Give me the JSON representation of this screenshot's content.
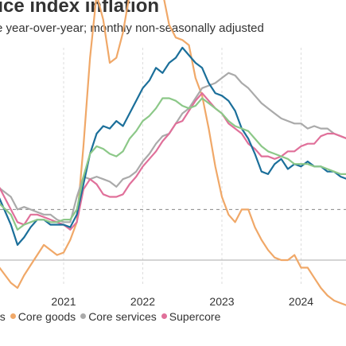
{
  "chart_data": {
    "type": "line",
    "title": "rice index inflation",
    "subtitle": "e year-over-year; monthly non-seasonally adjusted",
    "x_ticks": [
      "2021",
      "2022",
      "2023",
      "2024"
    ],
    "grid": "vertical dashed at years",
    "legend_position": "bottom",
    "series": [
      {
        "name": "Core goods",
        "color": "#f0a868",
        "values": [
          [
            "2020-01",
            0.0
          ],
          [
            "2020-03",
            -0.2
          ],
          [
            "2020-05",
            -0.9
          ],
          [
            "2020-06",
            -1.1
          ],
          [
            "2020-07",
            -0.6
          ],
          [
            "2020-08",
            -0.2
          ],
          [
            "2020-09",
            0.2
          ],
          [
            "2020-10",
            0.6
          ],
          [
            "2020-11",
            0.4
          ],
          [
            "2020-12",
            0.2
          ],
          [
            "2021-01",
            0.3
          ],
          [
            "2021-02",
            0.8
          ],
          [
            "2021-03",
            1.5
          ],
          [
            "2021-04",
            4.5
          ],
          [
            "2021-05",
            8.0
          ],
          [
            "2021-06",
            10.5
          ],
          [
            "2021-07",
            9.5
          ],
          [
            "2021-08",
            7.8
          ],
          [
            "2021-09",
            8.0
          ],
          [
            "2021-10",
            9.0
          ],
          [
            "2021-11",
            10.5
          ],
          [
            "2021-12",
            11.5
          ],
          [
            "2022-01",
            12.5
          ],
          [
            "2022-02",
            13.0
          ],
          [
            "2022-03",
            12.3
          ],
          [
            "2022-04",
            10.6
          ],
          [
            "2022-05",
            9.3
          ],
          [
            "2022-06",
            8.8
          ],
          [
            "2022-07",
            8.7
          ],
          [
            "2022-08",
            8.5
          ],
          [
            "2022-09",
            7.2
          ],
          [
            "2022-10",
            6.5
          ],
          [
            "2022-11",
            5.2
          ],
          [
            "2022-12",
            3.7
          ],
          [
            "2023-01",
            2.5
          ],
          [
            "2023-02",
            1.8
          ],
          [
            "2023-03",
            1.5
          ],
          [
            "2023-04",
            2.0
          ],
          [
            "2023-05",
            2.0
          ],
          [
            "2023-06",
            1.3
          ],
          [
            "2023-07",
            0.8
          ],
          [
            "2023-08",
            0.4
          ],
          [
            "2023-09",
            0.1
          ],
          [
            "2023-10",
            0.0
          ],
          [
            "2023-11",
            0.0
          ],
          [
            "2023-12",
            0.2
          ],
          [
            "2024-01",
            -0.3
          ],
          [
            "2024-02",
            -0.3
          ],
          [
            "2024-03",
            -0.7
          ],
          [
            "2024-04",
            -1.1
          ],
          [
            "2024-05",
            -1.4
          ],
          [
            "2024-06",
            -1.6
          ],
          [
            "2024-07",
            -1.7
          ],
          [
            "2024-08",
            -1.8
          ]
        ]
      },
      {
        "name": "Core services",
        "color": "#aaaaaa",
        "values": [
          [
            "2020-01",
            3.2
          ],
          [
            "2020-03",
            2.9
          ],
          [
            "2020-05",
            2.5
          ],
          [
            "2020-06",
            2.0
          ],
          [
            "2020-07",
            2.1
          ],
          [
            "2020-08",
            2.0
          ],
          [
            "2020-09",
            1.9
          ],
          [
            "2020-10",
            1.8
          ],
          [
            "2020-11",
            1.8
          ],
          [
            "2020-12",
            1.6
          ],
          [
            "2021-01",
            1.5
          ],
          [
            "2021-02",
            1.5
          ],
          [
            "2021-03",
            2.5
          ],
          [
            "2021-04",
            3.3
          ],
          [
            "2021-05",
            3.2
          ],
          [
            "2021-06",
            3.3
          ],
          [
            "2021-07",
            3.2
          ],
          [
            "2021-08",
            3.1
          ],
          [
            "2021-09",
            2.9
          ],
          [
            "2021-10",
            3.2
          ],
          [
            "2021-11",
            3.3
          ],
          [
            "2021-12",
            3.5
          ],
          [
            "2022-01",
            3.9
          ],
          [
            "2022-02",
            4.2
          ],
          [
            "2022-03",
            4.6
          ],
          [
            "2022-04",
            4.9
          ],
          [
            "2022-05",
            5.0
          ],
          [
            "2022-06",
            5.4
          ],
          [
            "2022-07",
            5.8
          ],
          [
            "2022-08",
            6.0
          ],
          [
            "2022-09",
            6.4
          ],
          [
            "2022-10",
            6.8
          ],
          [
            "2022-11",
            6.9
          ],
          [
            "2022-12",
            7.0
          ],
          [
            "2023-01",
            7.2
          ],
          [
            "2023-02",
            7.4
          ],
          [
            "2023-03",
            7.3
          ],
          [
            "2023-04",
            7.0
          ],
          [
            "2023-05",
            6.8
          ],
          [
            "2023-06",
            6.5
          ],
          [
            "2023-07",
            6.2
          ],
          [
            "2023-08",
            6.0
          ],
          [
            "2023-09",
            5.8
          ],
          [
            "2023-10",
            5.6
          ],
          [
            "2023-11",
            5.5
          ],
          [
            "2023-12",
            5.4
          ],
          [
            "2024-01",
            5.4
          ],
          [
            "2024-02",
            5.2
          ],
          [
            "2024-03",
            5.3
          ],
          [
            "2024-04",
            5.2
          ],
          [
            "2024-05",
            5.2
          ],
          [
            "2024-06",
            5.0
          ],
          [
            "2024-07",
            4.9
          ],
          [
            "2024-08",
            4.8
          ]
        ]
      },
      {
        "name": "Supercore",
        "color": "#e0709a",
        "values": [
          [
            "2020-01",
            3.5
          ],
          [
            "2020-03",
            3.0
          ],
          [
            "2020-05",
            2.0
          ],
          [
            "2020-06",
            1.5
          ],
          [
            "2020-07",
            1.4
          ],
          [
            "2020-08",
            1.8
          ],
          [
            "2020-09",
            1.8
          ],
          [
            "2020-10",
            1.7
          ],
          [
            "2020-11",
            1.6
          ],
          [
            "2020-12",
            1.5
          ],
          [
            "2021-01",
            1.4
          ],
          [
            "2021-02",
            1.2
          ],
          [
            "2021-03",
            1.5
          ],
          [
            "2021-04",
            2.8
          ],
          [
            "2021-05",
            3.2
          ],
          [
            "2021-06",
            3.0
          ],
          [
            "2021-07",
            2.6
          ],
          [
            "2021-08",
            2.5
          ],
          [
            "2021-09",
            2.5
          ],
          [
            "2021-10",
            2.6
          ],
          [
            "2021-11",
            3.0
          ],
          [
            "2021-12",
            3.3
          ],
          [
            "2022-01",
            3.7
          ],
          [
            "2022-02",
            4.0
          ],
          [
            "2022-03",
            4.3
          ],
          [
            "2022-04",
            4.7
          ],
          [
            "2022-05",
            5.0
          ],
          [
            "2022-06",
            5.4
          ],
          [
            "2022-07",
            5.5
          ],
          [
            "2022-08",
            5.9
          ],
          [
            "2022-09",
            6.3
          ],
          [
            "2022-10",
            6.6
          ],
          [
            "2022-11",
            6.3
          ],
          [
            "2022-12",
            6.0
          ],
          [
            "2023-01",
            5.8
          ],
          [
            "2023-02",
            5.4
          ],
          [
            "2023-03",
            5.2
          ],
          [
            "2023-04",
            5.0
          ],
          [
            "2023-05",
            4.6
          ],
          [
            "2023-06",
            4.4
          ],
          [
            "2023-07",
            4.1
          ],
          [
            "2023-08",
            4.1
          ],
          [
            "2023-09",
            4.0
          ],
          [
            "2023-10",
            4.1
          ],
          [
            "2023-11",
            4.3
          ],
          [
            "2023-12",
            4.3
          ],
          [
            "2024-01",
            4.5
          ],
          [
            "2024-02",
            4.6
          ],
          [
            "2024-03",
            4.6
          ],
          [
            "2024-04",
            4.9
          ],
          [
            "2024-05",
            5.0
          ],
          [
            "2024-06",
            5.0
          ],
          [
            "2024-07",
            4.9
          ],
          [
            "2024-08",
            4.8
          ]
        ]
      },
      {
        "name": "",
        "color": "#1b6f9a",
        "values": [
          [
            "2020-01",
            3.0
          ],
          [
            "2020-03",
            2.6
          ],
          [
            "2020-05",
            1.4
          ],
          [
            "2020-06",
            0.6
          ],
          [
            "2020-07",
            0.9
          ],
          [
            "2020-08",
            1.3
          ],
          [
            "2020-09",
            1.6
          ],
          [
            "2020-10",
            1.6
          ],
          [
            "2020-11",
            1.4
          ],
          [
            "2020-12",
            1.4
          ],
          [
            "2021-01",
            1.4
          ],
          [
            "2021-02",
            1.3
          ],
          [
            "2021-03",
            1.8
          ],
          [
            "2021-04",
            3.0
          ],
          [
            "2021-05",
            4.2
          ],
          [
            "2021-06",
            5.0
          ],
          [
            "2021-07",
            5.3
          ],
          [
            "2021-08",
            5.2
          ],
          [
            "2021-09",
            5.5
          ],
          [
            "2021-10",
            5.3
          ],
          [
            "2021-11",
            5.8
          ],
          [
            "2021-12",
            6.3
          ],
          [
            "2022-01",
            6.8
          ],
          [
            "2022-02",
            7.1
          ],
          [
            "2022-03",
            7.6
          ],
          [
            "2022-04",
            7.4
          ],
          [
            "2022-05",
            7.8
          ],
          [
            "2022-06",
            8.0
          ],
          [
            "2022-07",
            8.4
          ],
          [
            "2022-08",
            8.1
          ],
          [
            "2022-09",
            7.8
          ],
          [
            "2022-10",
            7.6
          ],
          [
            "2022-11",
            7.0
          ],
          [
            "2022-12",
            6.6
          ],
          [
            "2023-01",
            6.5
          ],
          [
            "2023-02",
            6.3
          ],
          [
            "2023-03",
            5.9
          ],
          [
            "2023-04",
            5.2
          ],
          [
            "2023-05",
            4.8
          ],
          [
            "2023-06",
            4.2
          ],
          [
            "2023-07",
            3.5
          ],
          [
            "2023-08",
            3.4
          ],
          [
            "2023-09",
            3.8
          ],
          [
            "2023-10",
            4.0
          ],
          [
            "2023-11",
            3.6
          ],
          [
            "2023-12",
            3.8
          ],
          [
            "2024-01",
            3.7
          ],
          [
            "2024-02",
            3.9
          ],
          [
            "2024-03",
            3.7
          ],
          [
            "2024-04",
            3.7
          ],
          [
            "2024-05",
            3.5
          ],
          [
            "2024-06",
            3.5
          ],
          [
            "2024-07",
            3.3
          ],
          [
            "2024-08",
            3.2
          ]
        ]
      },
      {
        "name": "",
        "color": "#8cc888",
        "values": [
          [
            "2020-01",
            2.5
          ],
          [
            "2020-03",
            2.3
          ],
          [
            "2020-05",
            1.8
          ],
          [
            "2020-06",
            1.2
          ],
          [
            "2020-07",
            1.4
          ],
          [
            "2020-08",
            1.5
          ],
          [
            "2020-09",
            1.6
          ],
          [
            "2020-10",
            1.6
          ],
          [
            "2020-11",
            1.5
          ],
          [
            "2020-12",
            1.5
          ],
          [
            "2021-01",
            1.6
          ],
          [
            "2021-02",
            1.6
          ],
          [
            "2021-03",
            2.0
          ],
          [
            "2021-04",
            3.3
          ],
          [
            "2021-05",
            4.2
          ],
          [
            "2021-06",
            4.5
          ],
          [
            "2021-07",
            4.4
          ],
          [
            "2021-08",
            4.2
          ],
          [
            "2021-09",
            4.1
          ],
          [
            "2021-10",
            4.3
          ],
          [
            "2021-11",
            4.8
          ],
          [
            "2021-12",
            5.1
          ],
          [
            "2022-01",
            5.5
          ],
          [
            "2022-02",
            5.7
          ],
          [
            "2022-03",
            6.0
          ],
          [
            "2022-04",
            6.4
          ],
          [
            "2022-05",
            6.4
          ],
          [
            "2022-06",
            6.3
          ],
          [
            "2022-07",
            6.1
          ],
          [
            "2022-08",
            6.0
          ],
          [
            "2022-09",
            6.1
          ],
          [
            "2022-10",
            6.4
          ],
          [
            "2022-11",
            6.2
          ],
          [
            "2022-12",
            6.0
          ],
          [
            "2023-01",
            5.8
          ],
          [
            "2023-02",
            5.5
          ],
          [
            "2023-03",
            5.3
          ],
          [
            "2023-04",
            5.2
          ],
          [
            "2023-05",
            5.1
          ],
          [
            "2023-06",
            4.8
          ],
          [
            "2023-07",
            4.5
          ],
          [
            "2023-08",
            4.3
          ],
          [
            "2023-09",
            4.2
          ],
          [
            "2023-10",
            4.1
          ],
          [
            "2023-11",
            4.0
          ],
          [
            "2023-12",
            3.8
          ],
          [
            "2024-01",
            3.8
          ],
          [
            "2024-02",
            3.8
          ],
          [
            "2024-03",
            3.7
          ],
          [
            "2024-04",
            3.7
          ],
          [
            "2024-05",
            3.6
          ],
          [
            "2024-06",
            3.5
          ],
          [
            "2024-07",
            3.4
          ],
          [
            "2024-08",
            3.4
          ]
        ]
      }
    ],
    "reference_lines": [
      {
        "value": 2.0,
        "style": "dashed",
        "color": "#888888"
      },
      {
        "value": 0.0,
        "style": "solid",
        "color": "#aaaaaa"
      }
    ],
    "legend": [
      {
        "label": "ns",
        "color": null
      },
      {
        "label": "Core goods",
        "color": "#f0a868"
      },
      {
        "label": "Core services",
        "color": "#aaaaaa"
      },
      {
        "label": "Supercore",
        "color": "#e0709a"
      }
    ]
  }
}
